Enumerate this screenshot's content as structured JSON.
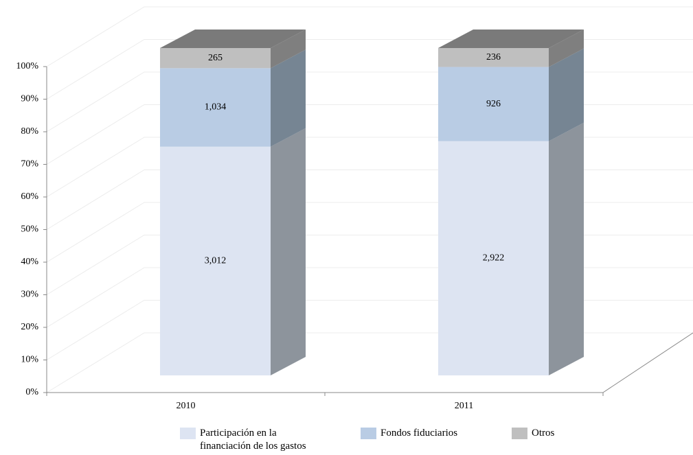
{
  "chart_data": {
    "type": "bar",
    "stacked": "percent",
    "categories": [
      "2010",
      "2011"
    ],
    "series": [
      {
        "name": "Participación en la financiación de los gastos",
        "color": "#dde4f2",
        "values": [
          3012,
          2922
        ],
        "value_labels": [
          "3,012",
          "2,922"
        ]
      },
      {
        "name": "Fondos fiduciarios",
        "color": "#b9cce4",
        "values": [
          1034,
          926
        ],
        "value_labels": [
          "1,034",
          "926"
        ]
      },
      {
        "name": "Otros",
        "color": "#bfbfbf",
        "values": [
          265,
          236
        ],
        "value_labels": [
          "265",
          "236"
        ]
      }
    ],
    "ylim": [
      0,
      100
    ],
    "yticks": [
      {
        "value": 0,
        "label": "0%"
      },
      {
        "value": 10,
        "label": "10%"
      },
      {
        "value": 20,
        "label": "20%"
      },
      {
        "value": 30,
        "label": "30%"
      },
      {
        "value": 40,
        "label": "40%"
      },
      {
        "value": 50,
        "label": "50%"
      },
      {
        "value": 60,
        "label": "60%"
      },
      {
        "value": 70,
        "label": "70%"
      },
      {
        "value": 80,
        "label": "80%"
      },
      {
        "value": 90,
        "label": "90%"
      },
      {
        "value": 100,
        "label": "100%"
      }
    ],
    "grid": true
  }
}
